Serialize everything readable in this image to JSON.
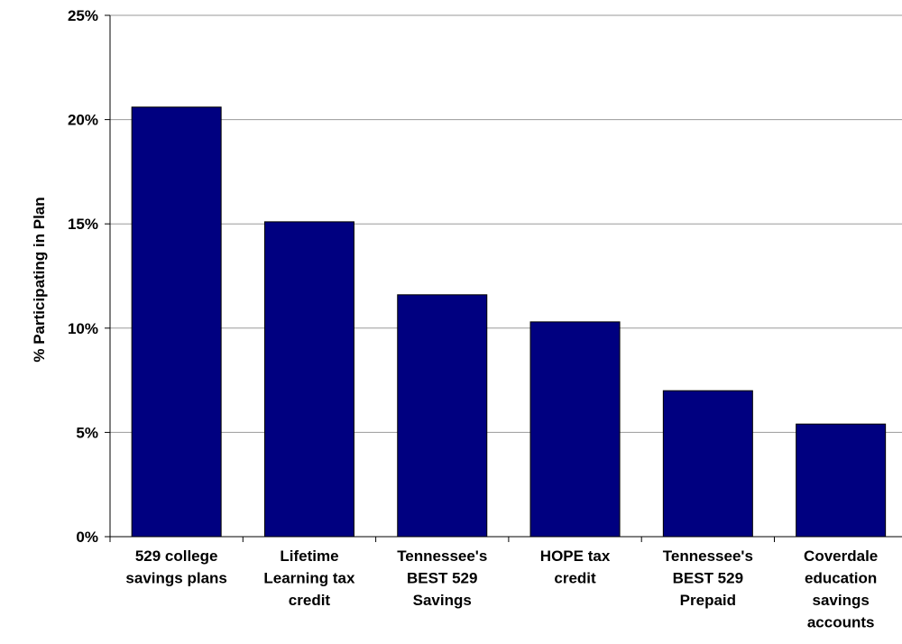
{
  "chart_data": {
    "type": "bar",
    "title": "",
    "xlabel": "",
    "ylabel": "% Participating in Plan",
    "ylim": [
      0,
      25
    ],
    "yticks": [
      0,
      5,
      10,
      15,
      20,
      25
    ],
    "ytick_suffix": "%",
    "grid": true,
    "legend": "none",
    "bar_color": "#000080",
    "categories": [
      [
        "529 college",
        "savings plans"
      ],
      [
        "Lifetime",
        "Learning tax",
        "credit"
      ],
      [
        "Tennessee's",
        "BEST 529",
        "Savings"
      ],
      [
        "HOPE tax",
        "credit"
      ],
      [
        "Tennessee's",
        "BEST 529",
        "Prepaid"
      ],
      [
        "Coverdale",
        "education",
        "savings",
        "accounts"
      ]
    ],
    "values": [
      20.6,
      15.1,
      11.6,
      10.3,
      7.0,
      5.4
    ]
  }
}
